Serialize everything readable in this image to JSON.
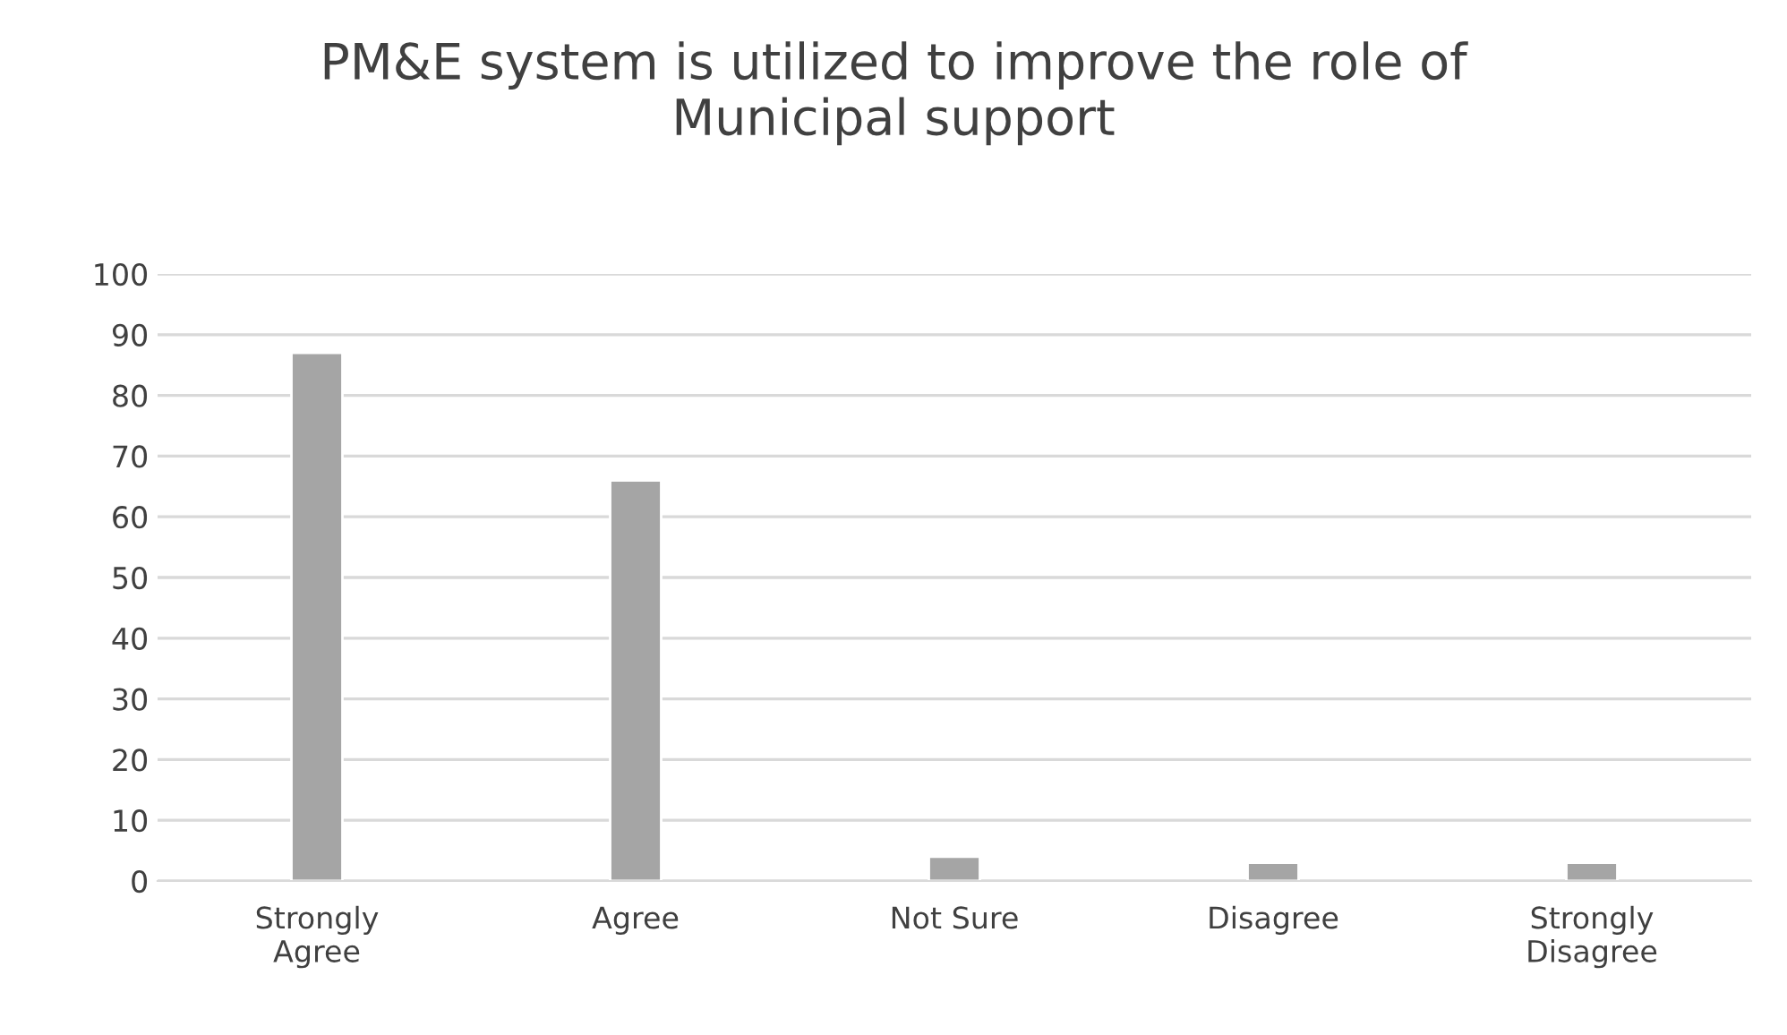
{
  "chart_data": {
    "type": "bar",
    "title": "PM&E system is utilized to improve the role of\nMunicipal support",
    "categories": [
      "Strongly\nAgree",
      "Agree",
      "Not Sure",
      "Disagree",
      "Strongly\nDisagree"
    ],
    "values": [
      87,
      66,
      4,
      3,
      3
    ],
    "color": "#a5a5a5",
    "ylim": [
      0,
      100
    ],
    "yticks": [
      0,
      10,
      20,
      30,
      40,
      50,
      60,
      70,
      80,
      90,
      100
    ],
    "grid": "y",
    "legend": false
  }
}
